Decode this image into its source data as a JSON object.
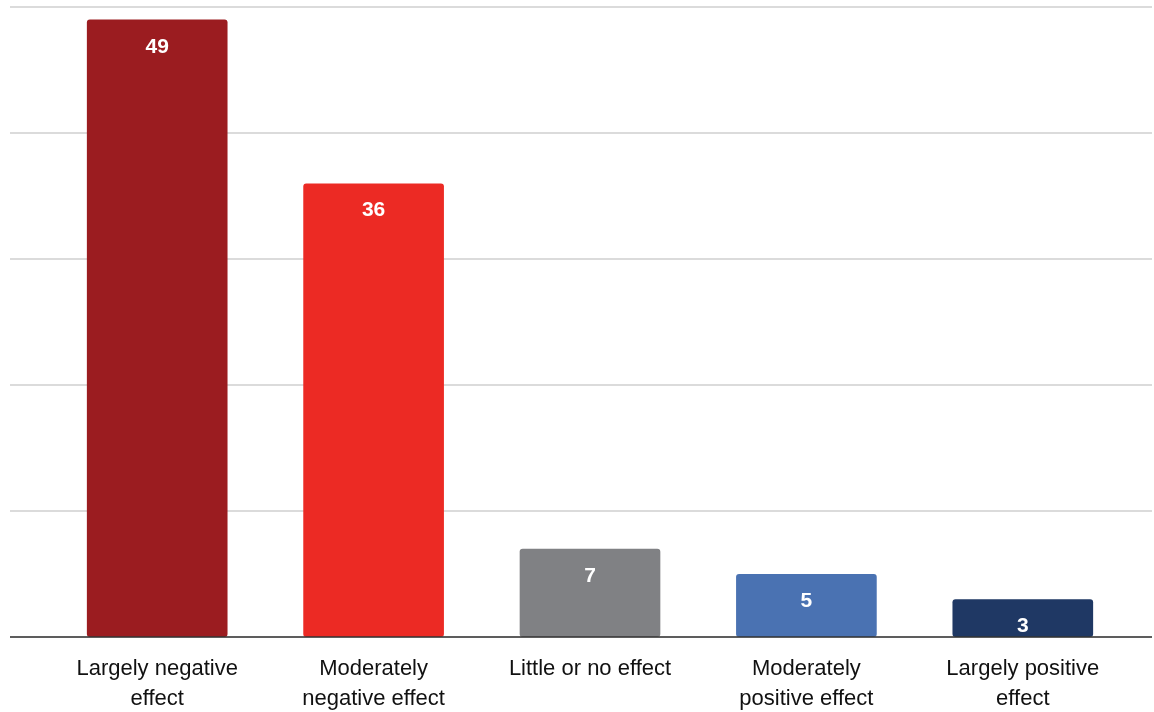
{
  "chart_data": {
    "type": "bar",
    "categories": [
      "Largely negative\neffect",
      "Moderately\nnegative effect",
      "Little or no effect",
      "Moderately\npositive effect",
      "Largely positive\neffect"
    ],
    "values": [
      49,
      36,
      7,
      5,
      3
    ],
    "colors": [
      "#9b1c20",
      "#ec2a24",
      "#808184",
      "#4a72b2",
      "#1f3864"
    ],
    "ylim": [
      0,
      50
    ],
    "yticks": [
      {
        "value": 0,
        "label": null
      },
      {
        "value": 10,
        "label": null
      },
      {
        "value": 20,
        "label": null
      },
      {
        "value": 30,
        "label": null
      },
      {
        "value": 40,
        "label": null
      },
      {
        "value": 50,
        "label": null
      }
    ],
    "tick_labels": "x",
    "grid": "y",
    "data_labels": true
  }
}
